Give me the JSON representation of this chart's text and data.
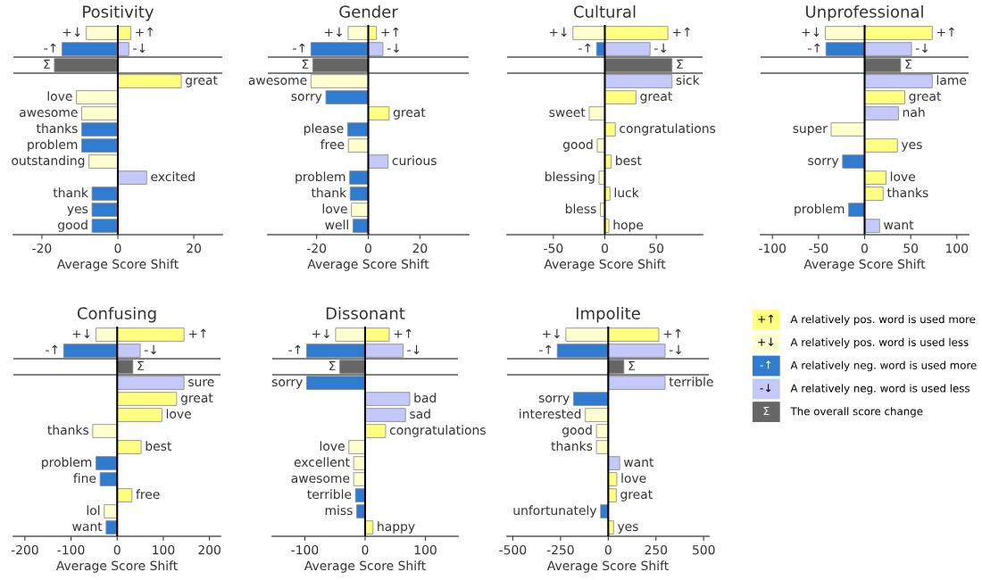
{
  "chart_data": [
    {
      "type": "bar",
      "orientation": "horizontal",
      "title": "Positivity",
      "xlabel": "Average Score Shift",
      "tick_labels": "x",
      "categories": [
        null,
        null,
        null,
        null,
        null,
        null,
        null,
        null,
        null,
        null,
        null,
        null,
        null
      ],
      "xlim": [
        -27.5,
        27.5
      ],
      "xticks": [
        -20,
        0,
        20
      ],
      "ref_lines": [
        {
          "axis": "x",
          "value": 0,
          "color": "#000000"
        }
      ],
      "series": [
        {
          "color": "#ffff80",
          "values": [
            3.4,
            null,
            null,
            16.7,
            null,
            null,
            null,
            null,
            null,
            null,
            null,
            null,
            null
          ],
          "value_labels": [
            "+↑",
            null,
            null,
            "great",
            null,
            null,
            null,
            null,
            null,
            null,
            null,
            null,
            null
          ]
        },
        {
          "color": "#ffffd0",
          "values": [
            -8.3,
            null,
            null,
            null,
            -10.9,
            -9.5,
            null,
            null,
            -7.6,
            null,
            null,
            null,
            null
          ],
          "value_labels": [
            "+↓",
            null,
            null,
            null,
            "love",
            "awesome",
            null,
            null,
            "outstanding",
            null,
            null,
            null,
            null
          ]
        },
        {
          "color": "#2f7bd0",
          "values": [
            null,
            -14.7,
            null,
            null,
            null,
            null,
            -9.5,
            -9.5,
            null,
            null,
            -6.8,
            -6.8,
            -6.8
          ],
          "value_labels": [
            null,
            "-↑",
            null,
            null,
            null,
            null,
            "thanks",
            "problem",
            null,
            null,
            "thank",
            "yes",
            "good"
          ]
        },
        {
          "color": "#c4c9fa",
          "values": [
            null,
            2.9,
            null,
            null,
            null,
            null,
            null,
            null,
            null,
            7.6,
            null,
            null,
            null
          ],
          "value_labels": [
            null,
            "-↓",
            null,
            null,
            null,
            null,
            null,
            null,
            null,
            "excited",
            null,
            null,
            null
          ]
        },
        {
          "color": "#666666",
          "values": [
            null,
            null,
            -16.7,
            null,
            null,
            null,
            null,
            null,
            null,
            null,
            null,
            null,
            null
          ],
          "value_labels": [
            null,
            null,
            "Σ",
            null,
            null,
            null,
            null,
            null,
            null,
            null,
            null,
            null,
            null
          ]
        }
      ]
    },
    {
      "type": "bar",
      "orientation": "horizontal",
      "title": "Gender",
      "xlabel": "Average Score Shift",
      "tick_labels": "x",
      "categories": [
        null,
        null,
        null,
        null,
        null,
        null,
        null,
        null,
        null,
        null,
        null,
        null,
        null
      ],
      "xlim": [
        -38.9,
        38.9
      ],
      "xticks": [
        -20,
        0,
        20
      ],
      "ref_lines": [
        {
          "axis": "x",
          "value": 0,
          "color": "#000000"
        }
      ],
      "series": [
        {
          "color": "#ffff80",
          "values": [
            3.2,
            null,
            null,
            null,
            null,
            8.1,
            null,
            null,
            null,
            null,
            null,
            null,
            null
          ],
          "value_labels": [
            "+↑",
            null,
            null,
            null,
            null,
            "great",
            null,
            null,
            null,
            null,
            null,
            null,
            null
          ]
        },
        {
          "color": "#ffffd0",
          "values": [
            -7.8,
            null,
            null,
            -22.2,
            null,
            null,
            null,
            -7.7,
            null,
            null,
            null,
            -6.5,
            null
          ],
          "value_labels": [
            "+↓",
            null,
            null,
            "awesome",
            null,
            null,
            null,
            "free",
            null,
            null,
            null,
            "love",
            null
          ]
        },
        {
          "color": "#2f7bd0",
          "values": [
            null,
            -22.2,
            null,
            null,
            -16.4,
            null,
            -8.0,
            null,
            null,
            -7.2,
            -7.0,
            null,
            -5.9
          ],
          "value_labels": [
            null,
            "-↑",
            null,
            null,
            "sorry",
            null,
            "please",
            null,
            null,
            "problem",
            "thank",
            null,
            "well"
          ]
        },
        {
          "color": "#c4c9fa",
          "values": [
            null,
            5.7,
            null,
            null,
            null,
            null,
            null,
            null,
            7.7,
            null,
            null,
            null,
            null
          ],
          "value_labels": [
            null,
            "-↓",
            null,
            null,
            null,
            null,
            null,
            null,
            "curious",
            null,
            null,
            null,
            null
          ]
        },
        {
          "color": "#666666",
          "values": [
            null,
            null,
            -21.5,
            null,
            null,
            null,
            null,
            null,
            null,
            null,
            null,
            null,
            null
          ],
          "value_labels": [
            null,
            null,
            "Σ",
            null,
            null,
            null,
            null,
            null,
            null,
            null,
            null,
            null,
            null
          ]
        }
      ]
    },
    {
      "type": "bar",
      "orientation": "horizontal",
      "title": "Cultural",
      "xlabel": "Average Score Shift",
      "tick_labels": "x",
      "categories": [
        null,
        null,
        null,
        null,
        null,
        null,
        null,
        null,
        null,
        null,
        null,
        null,
        null
      ],
      "xlim": [
        -95,
        95
      ],
      "xticks": [
        -50,
        0,
        50
      ],
      "ref_lines": [
        {
          "axis": "x",
          "value": 0,
          "color": "#000000"
        }
      ],
      "series": [
        {
          "color": "#ffff80",
          "values": [
            61.3,
            null,
            null,
            null,
            30.3,
            null,
            10.2,
            null,
            6.2,
            null,
            5.0,
            null,
            4.0
          ],
          "value_labels": [
            "+↑",
            null,
            null,
            null,
            "great",
            null,
            "congratulations",
            null,
            "best",
            null,
            "luck",
            null,
            "hope"
          ]
        },
        {
          "color": "#ffffd0",
          "values": [
            -31,
            null,
            null,
            null,
            null,
            -15.2,
            null,
            -7.4,
            null,
            -5.6,
            null,
            -4.3,
            null
          ],
          "value_labels": [
            "+↓",
            null,
            null,
            null,
            null,
            "sweet",
            null,
            "good",
            null,
            "blessing",
            null,
            "bless",
            null
          ]
        },
        {
          "color": "#2f7bd0",
          "values": [
            null,
            -8.0,
            null,
            null,
            null,
            null,
            null,
            null,
            null,
            null,
            null,
            null,
            null
          ],
          "value_labels": [
            null,
            "-↑",
            null,
            null,
            null,
            null,
            null,
            null,
            null,
            null,
            null,
            null,
            null
          ]
        },
        {
          "color": "#c4c9fa",
          "values": [
            null,
            44,
            null,
            65.3,
            null,
            null,
            null,
            null,
            null,
            null,
            null,
            null,
            null
          ],
          "value_labels": [
            null,
            "-↓",
            null,
            "sick",
            null,
            null,
            null,
            null,
            null,
            null,
            null,
            null,
            null
          ]
        },
        {
          "color": "#666666",
          "values": [
            null,
            null,
            65.3,
            null,
            null,
            null,
            null,
            null,
            null,
            null,
            null,
            null,
            null
          ],
          "value_labels": [
            null,
            null,
            "Σ",
            null,
            null,
            null,
            null,
            null,
            null,
            null,
            null,
            null,
            null
          ]
        }
      ]
    },
    {
      "type": "bar",
      "orientation": "horizontal",
      "title": "Unprofessional",
      "xlabel": "Average Score Shift",
      "tick_labels": "x",
      "categories": [
        null,
        null,
        null,
        null,
        null,
        null,
        null,
        null,
        null,
        null,
        null,
        null,
        null
      ],
      "xlim": [
        -112.8,
        112.8
      ],
      "xticks": [
        -100,
        -50,
        0,
        50,
        100
      ],
      "ref_lines": [
        {
          "axis": "x",
          "value": 0,
          "color": "#000000"
        }
      ],
      "series": [
        {
          "color": "#ffff80",
          "values": [
            73.4,
            null,
            null,
            null,
            43.6,
            null,
            null,
            35.6,
            null,
            23.2,
            20.1,
            null,
            null
          ],
          "value_labels": [
            "+↑",
            null,
            null,
            null,
            "great",
            null,
            null,
            "yes",
            null,
            "love",
            "thanks",
            null,
            null
          ]
        },
        {
          "color": "#ffffd0",
          "values": [
            -42.6,
            null,
            null,
            null,
            null,
            null,
            -36.3,
            null,
            null,
            null,
            null,
            null,
            null
          ],
          "value_labels": [
            "+↓",
            null,
            null,
            null,
            null,
            null,
            "super",
            null,
            null,
            null,
            null,
            null,
            null
          ]
        },
        {
          "color": "#2f7bd0",
          "values": [
            null,
            -41.9,
            null,
            null,
            null,
            null,
            null,
            null,
            -23.9,
            null,
            null,
            -17.3,
            null
          ],
          "value_labels": [
            null,
            "-↑",
            null,
            null,
            null,
            null,
            null,
            null,
            "sorry",
            null,
            null,
            "problem",
            null
          ]
        },
        {
          "color": "#c4c9fa",
          "values": [
            null,
            50.9,
            null,
            73.4,
            null,
            36.7,
            null,
            null,
            null,
            null,
            null,
            null,
            16.3
          ],
          "value_labels": [
            null,
            "-↓",
            null,
            "lame",
            null,
            "nah",
            null,
            null,
            null,
            null,
            null,
            null,
            "want"
          ]
        },
        {
          "color": "#666666",
          "values": [
            null,
            null,
            39.1,
            null,
            null,
            null,
            null,
            null,
            null,
            null,
            null,
            null,
            null
          ],
          "value_labels": [
            null,
            null,
            "Σ",
            null,
            null,
            null,
            null,
            null,
            null,
            null,
            null,
            null,
            null
          ]
        }
      ]
    },
    {
      "type": "bar",
      "orientation": "horizontal",
      "title": "Confusing",
      "xlabel": "Average Score Shift",
      "tick_labels": "x",
      "categories": [
        null,
        null,
        null,
        null,
        null,
        null,
        null,
        null,
        null,
        null,
        null,
        null,
        null
      ],
      "xlim": [
        -225,
        224
      ],
      "xticks": [
        -200,
        -100,
        0,
        100,
        200
      ],
      "ref_lines": [
        {
          "axis": "x",
          "value": 0,
          "color": "#000000"
        }
      ],
      "series": [
        {
          "color": "#ffff80",
          "values": [
            145,
            null,
            null,
            null,
            129,
            97,
            null,
            52,
            null,
            null,
            32,
            null,
            null
          ],
          "value_labels": [
            "+↑",
            null,
            null,
            null,
            "great",
            "love",
            null,
            "best",
            null,
            null,
            "free",
            null,
            null
          ]
        },
        {
          "color": "#ffffd0",
          "values": [
            -46,
            null,
            null,
            null,
            null,
            null,
            -53,
            null,
            null,
            null,
            null,
            -28,
            null
          ],
          "value_labels": [
            "+↓",
            null,
            null,
            null,
            null,
            null,
            "thanks",
            null,
            null,
            null,
            null,
            "lol",
            null
          ]
        },
        {
          "color": "#2f7bd0",
          "values": [
            null,
            -116,
            null,
            null,
            null,
            null,
            null,
            null,
            -46,
            -37,
            null,
            null,
            -24
          ],
          "value_labels": [
            null,
            "-↑",
            null,
            null,
            null,
            null,
            null,
            null,
            "problem",
            "fine",
            null,
            null,
            "want"
          ]
        },
        {
          "color": "#c4c9fa",
          "values": [
            null,
            50,
            null,
            145,
            null,
            null,
            null,
            null,
            null,
            null,
            null,
            null,
            null
          ],
          "value_labels": [
            null,
            "-↓",
            null,
            "sure",
            null,
            null,
            null,
            null,
            null,
            null,
            null,
            null,
            null
          ]
        },
        {
          "color": "#666666",
          "values": [
            null,
            null,
            34,
            null,
            null,
            null,
            null,
            null,
            null,
            null,
            null,
            null,
            null
          ],
          "value_labels": [
            null,
            null,
            "Σ",
            null,
            null,
            null,
            null,
            null,
            null,
            null,
            null,
            null,
            null
          ]
        }
      ]
    },
    {
      "type": "bar",
      "orientation": "horizontal",
      "title": "Dissonant",
      "xlabel": "Average Score Shift",
      "tick_labels": "x",
      "categories": [
        null,
        null,
        null,
        null,
        null,
        null,
        null,
        null,
        null,
        null,
        null,
        null,
        null
      ],
      "xlim": [
        -154,
        154
      ],
      "xticks": [
        -100,
        0,
        100
      ],
      "ref_lines": [
        {
          "axis": "x",
          "value": 0,
          "color": "#000000"
        }
      ],
      "series": [
        {
          "color": "#ffff80",
          "values": [
            40,
            null,
            null,
            null,
            null,
            null,
            34,
            null,
            null,
            null,
            null,
            null,
            13
          ],
          "value_labels": [
            "+↑",
            null,
            null,
            null,
            null,
            null,
            "congratulations",
            null,
            null,
            null,
            null,
            null,
            "happy"
          ]
        },
        {
          "color": "#ffffd0",
          "values": [
            -49,
            null,
            null,
            null,
            null,
            null,
            null,
            -27,
            -19,
            -19,
            null,
            null,
            null
          ],
          "value_labels": [
            "+↓",
            null,
            null,
            null,
            null,
            null,
            null,
            "love",
            "excellent",
            "awesome",
            null,
            null,
            null
          ]
        },
        {
          "color": "#2f7bd0",
          "values": [
            null,
            -97,
            null,
            -97,
            null,
            null,
            null,
            null,
            null,
            null,
            -16,
            -14,
            null
          ],
          "value_labels": [
            null,
            "-↑",
            null,
            "sorry",
            null,
            null,
            null,
            null,
            null,
            null,
            "terrible",
            "miss",
            null
          ]
        },
        {
          "color": "#c4c9fa",
          "values": [
            null,
            63,
            null,
            null,
            74,
            67,
            null,
            null,
            null,
            null,
            null,
            null,
            null
          ],
          "value_labels": [
            null,
            "-↓",
            null,
            null,
            "bad",
            "sad",
            null,
            null,
            null,
            null,
            null,
            null,
            null
          ]
        },
        {
          "color": "#666666",
          "values": [
            null,
            null,
            -42,
            null,
            null,
            null,
            null,
            null,
            null,
            null,
            null,
            null,
            null
          ],
          "value_labels": [
            null,
            null,
            "Σ",
            null,
            null,
            null,
            null,
            null,
            null,
            null,
            null,
            null,
            null
          ]
        }
      ]
    },
    {
      "type": "bar",
      "orientation": "horizontal",
      "title": "Impolite",
      "xlabel": "Average Score Shift",
      "tick_labels": "x",
      "legend": "right",
      "categories": [
        null,
        null,
        null,
        null,
        null,
        null,
        null,
        null,
        null,
        null,
        null,
        null,
        null
      ],
      "xlim": [
        -530,
        527
      ],
      "xticks": [
        -500,
        -250,
        0,
        250,
        500
      ],
      "ref_lines": [
        {
          "axis": "x",
          "value": 0,
          "color": "#000000"
        }
      ],
      "series": [
        {
          "name": "A relatively pos. word is used more",
          "color": "#ffff80",
          "values": [
            265,
            null,
            null,
            null,
            null,
            null,
            null,
            null,
            null,
            45,
            42,
            null,
            28
          ],
          "value_labels": [
            "+↑",
            null,
            null,
            null,
            null,
            null,
            null,
            null,
            null,
            "love",
            "great",
            null,
            "yes"
          ]
        },
        {
          "name": "A relatively pos. word is used less",
          "color": "#ffffd0",
          "values": [
            -222,
            null,
            null,
            null,
            null,
            -120,
            -62,
            -62,
            null,
            null,
            null,
            null,
            null
          ],
          "value_labels": [
            "+↓",
            null,
            null,
            null,
            null,
            "interested",
            "good",
            "thanks",
            null,
            null,
            null,
            null,
            null
          ]
        },
        {
          "name": "A relatively neg. word is used more",
          "color": "#2f7bd0",
          "values": [
            null,
            -267,
            null,
            null,
            -182,
            null,
            null,
            null,
            null,
            null,
            null,
            -40,
            null
          ],
          "value_labels": [
            null,
            "-↑",
            null,
            null,
            "sorry",
            null,
            null,
            null,
            null,
            null,
            null,
            "unfortunately",
            null
          ]
        },
        {
          "name": "A relatively neg. word is used less",
          "color": "#c4c9fa",
          "values": [
            null,
            298,
            null,
            298,
            null,
            null,
            null,
            null,
            60,
            null,
            null,
            null,
            null
          ],
          "value_labels": [
            null,
            "-↓",
            null,
            "terrible",
            null,
            null,
            null,
            null,
            "want",
            null,
            null,
            null,
            null
          ]
        },
        {
          "name": "The overall score change",
          "color": "#666666",
          "values": [
            null,
            null,
            82,
            null,
            null,
            null,
            null,
            null,
            null,
            null,
            null,
            null,
            null
          ],
          "value_labels": [
            null,
            null,
            "Σ",
            null,
            null,
            null,
            null,
            null,
            null,
            null,
            null,
            null,
            null
          ]
        }
      ]
    }
  ]
}
